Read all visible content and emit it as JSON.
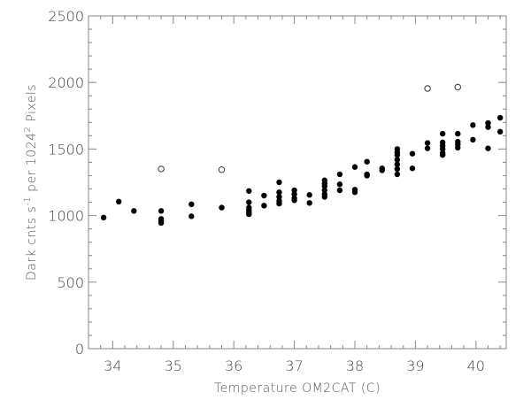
{
  "chart_data": {
    "type": "scatter",
    "xlabel": "Temperature OM2CAT (C)",
    "ylabel_parts": {
      "pre": "Dark cnts s",
      "sup1": "-1",
      "mid": " per 1024",
      "sup2": "2",
      "post": " Pixels"
    },
    "xlim": [
      33.6,
      40.5
    ],
    "ylim": [
      0,
      2500
    ],
    "x_ticks": [
      34,
      35,
      36,
      37,
      38,
      39,
      40
    ],
    "y_ticks": [
      0,
      500,
      1000,
      1500,
      2000,
      2500
    ],
    "x_tick_labels": [
      "34",
      "35",
      "36",
      "37",
      "38",
      "39",
      "40"
    ],
    "y_tick_labels": [
      "0",
      "500",
      "1000",
      "1500",
      "2000",
      "2500"
    ],
    "grid": false,
    "series": [
      {
        "marker": "filled-circle",
        "points": [
          [
            33.85,
            985
          ],
          [
            34.1,
            1105
          ],
          [
            34.35,
            1035
          ],
          [
            34.8,
            1035
          ],
          [
            34.8,
            975
          ],
          [
            34.8,
            960
          ],
          [
            34.8,
            945
          ],
          [
            35.3,
            1085
          ],
          [
            35.3,
            995
          ],
          [
            35.8,
            1060
          ],
          [
            36.25,
            1185
          ],
          [
            36.25,
            1100
          ],
          [
            36.25,
            1060
          ],
          [
            36.25,
            1040
          ],
          [
            36.25,
            1025
          ],
          [
            36.25,
            1010
          ],
          [
            36.5,
            1150
          ],
          [
            36.5,
            1075
          ],
          [
            36.75,
            1250
          ],
          [
            36.75,
            1175
          ],
          [
            36.75,
            1140
          ],
          [
            36.75,
            1110
          ],
          [
            36.75,
            1090
          ],
          [
            37.0,
            1190
          ],
          [
            37.0,
            1160
          ],
          [
            37.0,
            1130
          ],
          [
            37.0,
            1115
          ],
          [
            37.25,
            1155
          ],
          [
            37.25,
            1095
          ],
          [
            37.5,
            1265
          ],
          [
            37.5,
            1240
          ],
          [
            37.5,
            1220
          ],
          [
            37.5,
            1190
          ],
          [
            37.5,
            1160
          ],
          [
            37.5,
            1140
          ],
          [
            37.75,
            1310
          ],
          [
            37.75,
            1235
          ],
          [
            37.75,
            1190
          ],
          [
            38.0,
            1365
          ],
          [
            38.0,
            1195
          ],
          [
            38.0,
            1175
          ],
          [
            38.2,
            1405
          ],
          [
            38.2,
            1310
          ],
          [
            38.2,
            1300
          ],
          [
            38.45,
            1355
          ],
          [
            38.45,
            1340
          ],
          [
            38.7,
            1500
          ],
          [
            38.7,
            1475
          ],
          [
            38.7,
            1455
          ],
          [
            38.7,
            1420
          ],
          [
            38.7,
            1385
          ],
          [
            38.7,
            1350
          ],
          [
            38.7,
            1310
          ],
          [
            38.95,
            1465
          ],
          [
            38.95,
            1355
          ],
          [
            39.2,
            1545
          ],
          [
            39.2,
            1505
          ],
          [
            39.45,
            1615
          ],
          [
            39.45,
            1550
          ],
          [
            39.45,
            1525
          ],
          [
            39.45,
            1500
          ],
          [
            39.45,
            1470
          ],
          [
            39.45,
            1455
          ],
          [
            39.7,
            1615
          ],
          [
            39.7,
            1555
          ],
          [
            39.7,
            1535
          ],
          [
            39.7,
            1510
          ],
          [
            39.95,
            1680
          ],
          [
            39.95,
            1570
          ],
          [
            40.2,
            1695
          ],
          [
            40.2,
            1665
          ],
          [
            40.2,
            1505
          ],
          [
            40.4,
            1735
          ],
          [
            40.4,
            1630
          ]
        ]
      },
      {
        "marker": "open-circle",
        "points": [
          [
            34.8,
            1350
          ],
          [
            35.8,
            1345
          ],
          [
            39.2,
            1955
          ],
          [
            39.7,
            1965
          ]
        ]
      }
    ]
  }
}
